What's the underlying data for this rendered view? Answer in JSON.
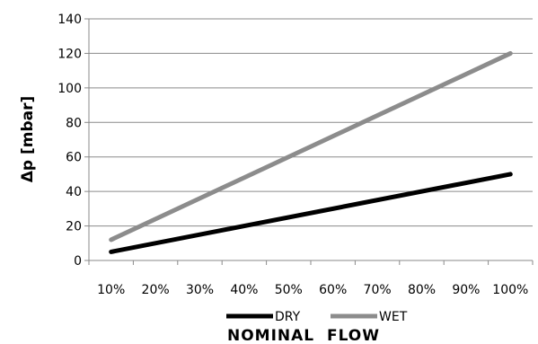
{
  "chart_data": {
    "type": "line",
    "xlabel": "NOMINAL  FLOW",
    "ylabel": "Δp [mbar]",
    "ylim": [
      0,
      140
    ],
    "yticks": [
      "0",
      "20",
      "40",
      "60",
      "80",
      "100",
      "120",
      "140"
    ],
    "categories": [
      "10%",
      "20%",
      "30%",
      "40%",
      "50%",
      "60%",
      "70%",
      "80%",
      "90%",
      "100%"
    ],
    "grid": true,
    "legend_position": "bottom",
    "series": [
      {
        "name": "DRY",
        "color": "#000000",
        "x": [
          0.1,
          1.0
        ],
        "y": [
          5,
          50
        ]
      },
      {
        "name": "WET",
        "color": "#8c8c8c",
        "x": [
          0.1,
          1.0
        ],
        "y": [
          12,
          120
        ]
      }
    ]
  }
}
